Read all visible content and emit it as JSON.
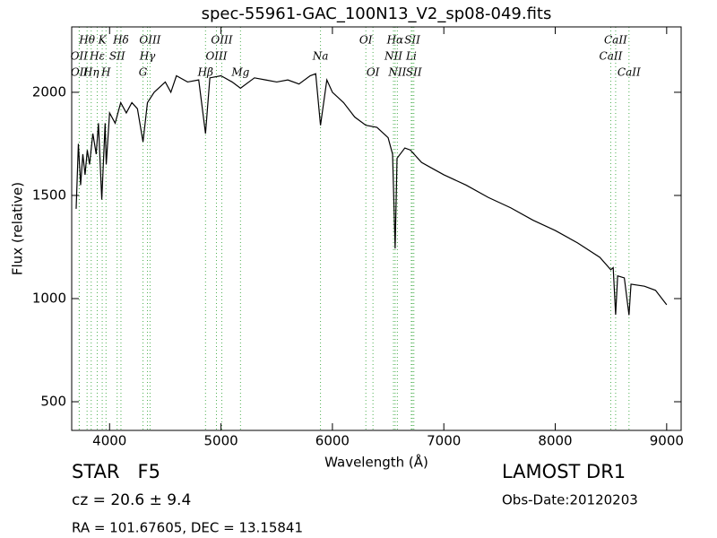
{
  "chart_data": {
    "type": "line",
    "title": "spec-55961-GAC_100N13_V2_sp08-049.fits",
    "x_label": "Wavelength (Å)",
    "y_label": "Flux (relative)",
    "xlim": [
      3660,
      9130
    ],
    "ylim": [
      361,
      2317
    ],
    "xticks": [
      4000,
      5000,
      6000,
      7000,
      8000,
      9000
    ],
    "yticks": [
      500,
      1000,
      1500,
      2000
    ],
    "series": [
      {
        "name": "spectrum",
        "color": "#000000",
        "x": [
          3700,
          3720,
          3740,
          3760,
          3780,
          3800,
          3820,
          3850,
          3880,
          3900,
          3930,
          3960,
          3970,
          4000,
          4050,
          4100,
          4150,
          4200,
          4250,
          4300,
          4340,
          4400,
          4500,
          4550,
          4600,
          4700,
          4800,
          4861,
          4900,
          5000,
          5100,
          5175,
          5300,
          5400,
          5500,
          5600,
          5700,
          5800,
          5850,
          5893,
          5950,
          6000,
          6100,
          6200,
          6300,
          6400,
          6500,
          6540,
          6563,
          6580,
          6650,
          6700,
          6800,
          6900,
          7000,
          7200,
          7400,
          7600,
          7800,
          8000,
          8200,
          8400,
          8498,
          8520,
          8542,
          8560,
          8620,
          8662,
          8680,
          8800,
          8900,
          9000
        ],
        "values": [
          1435,
          1750,
          1550,
          1700,
          1600,
          1720,
          1650,
          1800,
          1700,
          1850,
          1480,
          1850,
          1650,
          1900,
          1850,
          1950,
          1900,
          1950,
          1920,
          1760,
          1950,
          2000,
          2050,
          2000,
          2080,
          2050,
          2060,
          1800,
          2070,
          2080,
          2050,
          2020,
          2070,
          2060,
          2050,
          2060,
          2040,
          2080,
          2090,
          1840,
          2060,
          2000,
          1950,
          1880,
          1840,
          1830,
          1780,
          1700,
          1243,
          1680,
          1730,
          1720,
          1660,
          1630,
          1600,
          1550,
          1490,
          1440,
          1380,
          1330,
          1270,
          1200,
          1140,
          1150,
          922,
          1110,
          1100,
          920,
          1070,
          1060,
          1040,
          970
        ]
      }
    ],
    "line_rows": [
      [
        {
          "x": 3798,
          "label": "Hθ"
        },
        {
          "x": 3934,
          "label": "K"
        },
        {
          "x": 4102,
          "label": "Hδ"
        },
        {
          "x": 4363,
          "label": "OIII"
        },
        {
          "x": 5007,
          "label": "OIII"
        },
        {
          "x": 6300,
          "label": "OI"
        },
        {
          "x": 6563,
          "label": "Hα"
        },
        {
          "x": 6717,
          "label": "SII"
        },
        {
          "x": 8542,
          "label": "CaII"
        }
      ],
      [
        {
          "x": 3727,
          "label": "OII"
        },
        {
          "x": 3889,
          "label": "Hε"
        },
        {
          "x": 4068,
          "label": "SII"
        },
        {
          "x": 4340,
          "label": "Hγ"
        },
        {
          "x": 4959,
          "label": "OIII"
        },
        {
          "x": 5893,
          "label": "Na"
        },
        {
          "x": 6548,
          "label": "NII"
        },
        {
          "x": 6708,
          "label": "Li"
        },
        {
          "x": 8498,
          "label": "CaII"
        }
      ],
      [
        {
          "x": 3729,
          "label": "OII"
        },
        {
          "x": 3835,
          "label": "Hη"
        },
        {
          "x": 3968,
          "label": "H"
        },
        {
          "x": 4300,
          "label": "G"
        },
        {
          "x": 4861,
          "label": "Hβ"
        },
        {
          "x": 5175,
          "label": "Mg"
        },
        {
          "x": 6364,
          "label": "OI"
        },
        {
          "x": 6583,
          "label": "NII"
        },
        {
          "x": 6731,
          "label": "SII"
        },
        {
          "x": 8662,
          "label": "CaII"
        }
      ]
    ],
    "footer": {
      "class": "STAR   F5",
      "cz": "cz = 20.6 ± 9.4",
      "coords": "RA = 101.67605, DEC = 13.15841",
      "survey": "LAMOST DR1",
      "date": "Obs-Date:20120203"
    }
  }
}
